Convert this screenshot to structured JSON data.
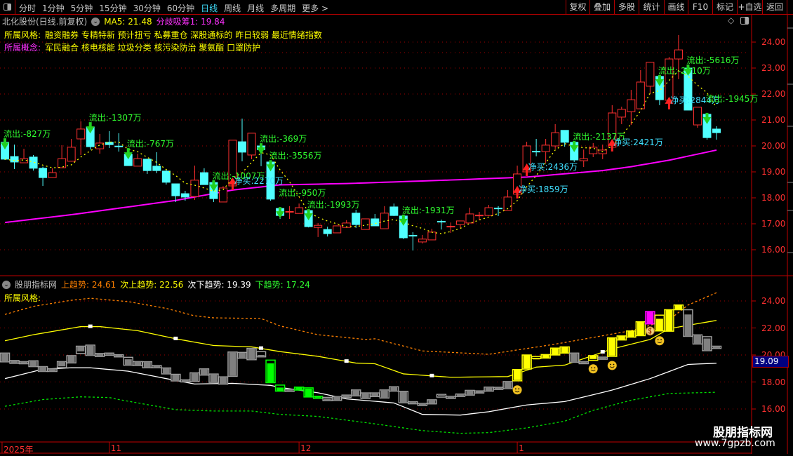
{
  "toolbar": {
    "tabs": [
      "分时",
      "1分钟",
      "5分钟",
      "15分钟",
      "30分钟",
      "60分钟",
      "日线",
      "周线",
      "月线",
      "多周期",
      "更多 >"
    ],
    "active_tab": "日线",
    "buttons": [
      "复权",
      "叠加",
      "多股",
      "统计",
      "画线",
      "F10",
      "标记",
      "+自选",
      "返回"
    ]
  },
  "header": {
    "stock_title": "北化股份(日线.前复权)",
    "ma5_label": "MA5: 21.48",
    "accum_label": "分歧吸筹1: 19.84",
    "style_label": "所属风格:",
    "style_tags": "融资融券 专精特新 预计扭亏 私募重仓 深股通标的 昨日较弱 最近情绪指数",
    "concept_label": "所属概念:",
    "concept_tags": "军民融合 核电核能 垃圾分类 核污染防治 聚氨酯 口罩防护"
  },
  "lower_header": {
    "name": "股朋指标网",
    "up_trend": "上趋势: 24.61",
    "sub_up_trend": "次上趋势: 22.56",
    "sub_down_trend": "次下趋势: 19.39",
    "down_trend": "下趋势: 17.24",
    "style_label": "所属风格:",
    "cursor_value": "19.09"
  },
  "axis": {
    "upper_prices": [
      "24.00",
      "23.00",
      "22.00",
      "21.00",
      "20.00",
      "19.00",
      "18.00",
      "17.00",
      "16.00"
    ],
    "lower_prices": [
      "24.00",
      "22.00",
      "20.00",
      "18.00",
      "16.00"
    ],
    "dates": [
      {
        "label": "2025年",
        "index": -0.3
      },
      {
        "label": "11",
        "index": 11
      },
      {
        "label": "12",
        "index": 31
      },
      {
        "label": "1",
        "index": 54
      }
    ]
  },
  "watermark": {
    "title": "股朋指标网",
    "url": "www.7gpzb.com"
  },
  "colors": {
    "up": "#ff3030",
    "down": "#50ffff",
    "ma5": "#ffff00",
    "accum": "#ff00ff",
    "outflow": "#30ff30",
    "netbuy": "#40e0ff",
    "grid": "#a00000",
    "band_up": "#ff8000",
    "band_sub_up": "#ffff00",
    "band_sub_down": "#ffffff",
    "band_down": "#00e000",
    "lower_gray": "#808080",
    "lower_green": "#00ff00",
    "lower_yellow": "#ffff00",
    "lower_magenta": "#ff00ff"
  },
  "chart_data": {
    "type": "candlestick",
    "candles_ohlc": [
      [
        20.14,
        20.24,
        19.46,
        19.49
      ],
      [
        19.59,
        20.05,
        19.11,
        19.38
      ],
      [
        19.35,
        19.89,
        19.35,
        19.51
      ],
      [
        19.57,
        19.65,
        19.05,
        19.14
      ],
      [
        19.14,
        19.2,
        18.46,
        18.78
      ],
      [
        18.78,
        19.14,
        18.78,
        18.97
      ],
      [
        19.16,
        20.03,
        19.16,
        19.51
      ],
      [
        19.41,
        20.27,
        19.4,
        19.95
      ],
      [
        20.27,
        20.95,
        19.65,
        20.65
      ],
      [
        20.73,
        20.86,
        19.86,
        19.97
      ],
      [
        19.89,
        20.46,
        19.7,
        20.11
      ],
      [
        20.14,
        20.57,
        19.92,
        20.05
      ],
      [
        19.98,
        20.49,
        19.78,
        19.97
      ],
      [
        19.68,
        19.86,
        19.24,
        19.24
      ],
      [
        19.22,
        19.7,
        19.22,
        19.51
      ],
      [
        19.49,
        19.49,
        18.92,
        19.05
      ],
      [
        19.22,
        19.76,
        18.95,
        19.05
      ],
      [
        19.03,
        19.1,
        18.51,
        18.6
      ],
      [
        18.54,
        18.54,
        17.84,
        18.08
      ],
      [
        18.16,
        18.27,
        17.89,
        18.03
      ],
      [
        18.05,
        19.24,
        17.92,
        18.68
      ],
      [
        18.97,
        19.14,
        18.5,
        18.51
      ],
      [
        18.59,
        18.62,
        17.84,
        17.97
      ],
      [
        17.84,
        18.45,
        17.84,
        18.38
      ],
      [
        18.46,
        20.22,
        18.46,
        20.22
      ],
      [
        20.16,
        21.05,
        19.41,
        19.76
      ],
      [
        19.65,
        20.49,
        19.49,
        20.49
      ],
      [
        20.0,
        20.05,
        19.22,
        19.86
      ],
      [
        19.38,
        19.4,
        17.89,
        17.95
      ],
      [
        17.59,
        17.59,
        17.19,
        17.32
      ],
      [
        17.43,
        17.68,
        17.19,
        17.46
      ],
      [
        17.4,
        17.78,
        17.4,
        17.62
      ],
      [
        17.51,
        17.51,
        16.86,
        16.89
      ],
      [
        16.86,
        17.03,
        16.49,
        16.94
      ],
      [
        16.78,
        16.89,
        16.51,
        16.62
      ],
      [
        16.65,
        16.92,
        16.65,
        16.92
      ],
      [
        16.86,
        17.14,
        16.86,
        17.03
      ],
      [
        17.41,
        17.54,
        16.84,
        16.97
      ],
      [
        16.78,
        17.19,
        16.78,
        17.19
      ],
      [
        17.19,
        17.38,
        16.92,
        16.92
      ],
      [
        16.81,
        17.68,
        16.81,
        17.41
      ],
      [
        17.65,
        17.78,
        17.3,
        17.32
      ],
      [
        17.3,
        17.3,
        16.41,
        16.46
      ],
      [
        16.54,
        16.68,
        15.97,
        16.51
      ],
      [
        16.3,
        16.57,
        16.24,
        16.41
      ],
      [
        16.38,
        16.81,
        16.38,
        16.68
      ],
      [
        17.08,
        17.16,
        16.78,
        17.03
      ],
      [
        16.84,
        17.05,
        16.65,
        16.89
      ],
      [
        16.97,
        17.11,
        16.84,
        17.11
      ],
      [
        17.03,
        17.62,
        17.03,
        17.38
      ],
      [
        17.3,
        17.46,
        17.14,
        17.32
      ],
      [
        17.32,
        17.73,
        17.3,
        17.62
      ],
      [
        17.59,
        17.68,
        17.3,
        17.57
      ],
      [
        17.51,
        18.3,
        17.51,
        18.03
      ],
      [
        18.14,
        19.24,
        18.14,
        18.92
      ],
      [
        19.0,
        20.16,
        19.0,
        20.0
      ],
      [
        19.78,
        20.27,
        19.6,
        19.76
      ],
      [
        19.78,
        20.27,
        19.35,
        20.03
      ],
      [
        20.0,
        20.84,
        19.89,
        20.51
      ],
      [
        20.6,
        20.6,
        19.97,
        20.14
      ],
      [
        20.14,
        20.14,
        19.38,
        19.46
      ],
      [
        19.43,
        19.86,
        19.19,
        19.51
      ],
      [
        19.7,
        20.11,
        19.57,
        19.95
      ],
      [
        19.7,
        20.05,
        19.49,
        19.84
      ],
      [
        19.95,
        21.57,
        19.95,
        21.27
      ],
      [
        21.11,
        21.51,
        20.84,
        21.41
      ],
      [
        21.32,
        22.16,
        20.81,
        21.78
      ],
      [
        21.43,
        22.92,
        21.43,
        22.46
      ],
      [
        22.3,
        23.22,
        22.02,
        23.22
      ],
      [
        22.68,
        22.68,
        21.57,
        21.78
      ],
      [
        21.76,
        23.43,
        21.57,
        23.35
      ],
      [
        23.35,
        24.27,
        22.57,
        23.7
      ],
      [
        23.0,
        23.08,
        21.38,
        21.38
      ],
      [
        20.81,
        21.49,
        20.7,
        21.49
      ],
      [
        21.22,
        21.22,
        20.24,
        20.32
      ],
      [
        20.65,
        20.76,
        20.24,
        20.51
      ]
    ],
    "accum_line_points": [
      [
        0,
        17.05
      ],
      [
        7,
        17.35
      ],
      [
        18,
        17.9
      ],
      [
        24,
        18.3
      ],
      [
        29,
        18.5
      ],
      [
        36,
        18.55
      ],
      [
        48,
        18.7
      ],
      [
        55,
        18.8
      ],
      [
        63,
        19.05
      ],
      [
        66,
        19.2
      ],
      [
        70,
        19.45
      ],
      [
        75,
        19.84
      ]
    ],
    "annotations": [
      {
        "index": 0,
        "text": "流出:-827万",
        "kind": "out"
      },
      {
        "index": 9,
        "text": "流出:-1307万",
        "kind": "out"
      },
      {
        "index": 13,
        "text": "流出:-767万",
        "kind": "out"
      },
      {
        "index": 22,
        "text": "流出:-1007万",
        "kind": "out"
      },
      {
        "index": 24,
        "text": "净买:2270万",
        "kind": "buy"
      },
      {
        "index": 27,
        "text": "流出:-369万",
        "kind": "out"
      },
      {
        "index": 28,
        "text": "流出:-3556万",
        "kind": "out"
      },
      {
        "index": 29,
        "text": "流出:-950万",
        "kind": "out"
      },
      {
        "index": 32,
        "text": "流出:-1993万",
        "kind": "out"
      },
      {
        "index": 42,
        "text": "流出:-1931万",
        "kind": "out"
      },
      {
        "index": 54,
        "text": "净买:1859万",
        "kind": "buy"
      },
      {
        "index": 55,
        "text": "净买:2436万",
        "kind": "buy"
      },
      {
        "index": 60,
        "text": "流出:-2137万",
        "kind": "out"
      },
      {
        "index": 64,
        "text": "净买:2421万",
        "kind": "buy"
      },
      {
        "index": 69,
        "text": "流出:-2010万",
        "kind": "out"
      },
      {
        "index": 70,
        "text": "净买:2844万",
        "kind": "buy"
      },
      {
        "index": 72,
        "text": "流出:-5616万",
        "kind": "out"
      },
      {
        "index": 74,
        "text": "流出:-1945万",
        "kind": "out"
      }
    ],
    "lower_bands": {
      "up": [
        [
          0,
          23.0
        ],
        [
          3,
          23.6
        ],
        [
          7,
          24.05
        ],
        [
          9,
          24.2
        ],
        [
          13,
          23.95
        ],
        [
          17,
          23.45
        ],
        [
          20,
          22.9
        ],
        [
          22,
          22.75
        ],
        [
          27,
          22.7
        ],
        [
          29,
          22.15
        ],
        [
          33,
          21.5
        ],
        [
          38,
          21.15
        ],
        [
          39,
          21.2
        ],
        [
          44,
          20.3
        ],
        [
          51,
          20.05
        ],
        [
          58,
          20.8
        ],
        [
          62,
          21.3
        ],
        [
          66,
          21.8
        ],
        [
          70,
          22.6
        ],
        [
          72,
          23.7
        ],
        [
          75,
          24.61
        ]
      ],
      "sub_up": [
        [
          0,
          21.05
        ],
        [
          3,
          21.5
        ],
        [
          8,
          22.1
        ],
        [
          10,
          22.1
        ],
        [
          14,
          21.8
        ],
        [
          18,
          21.2
        ],
        [
          22,
          20.7
        ],
        [
          26,
          20.6
        ],
        [
          29,
          20.25
        ],
        [
          33,
          19.9
        ],
        [
          37,
          19.4
        ],
        [
          39,
          19.35
        ],
        [
          42,
          18.6
        ],
        [
          47,
          18.35
        ],
        [
          53,
          18.4
        ],
        [
          56,
          19.1
        ],
        [
          59,
          19.25
        ],
        [
          64,
          20.45
        ],
        [
          68,
          21.15
        ],
        [
          70,
          21.95
        ],
        [
          75,
          22.56
        ]
      ],
      "sub_down": [
        [
          0,
          18.25
        ],
        [
          4,
          18.95
        ],
        [
          7,
          19.05
        ],
        [
          9,
          19.05
        ],
        [
          13,
          18.8
        ],
        [
          17,
          18.25
        ],
        [
          20,
          17.85
        ],
        [
          24,
          17.9
        ],
        [
          28,
          17.75
        ],
        [
          29,
          17.6
        ],
        [
          33,
          17.2
        ],
        [
          36,
          16.75
        ],
        [
          41,
          16.45
        ],
        [
          44,
          15.6
        ],
        [
          48,
          15.55
        ],
        [
          51,
          15.8
        ],
        [
          55,
          16.3
        ],
        [
          59,
          16.55
        ],
        [
          64,
          17.4
        ],
        [
          68,
          18.25
        ],
        [
          72,
          19.3
        ],
        [
          75,
          19.39
        ]
      ],
      "down": [
        [
          0,
          16.2
        ],
        [
          4,
          16.7
        ],
        [
          8,
          16.9
        ],
        [
          11,
          16.85
        ],
        [
          12,
          16.7
        ],
        [
          16,
          16.2
        ],
        [
          18,
          15.95
        ],
        [
          22,
          15.85
        ],
        [
          26,
          15.85
        ],
        [
          29,
          15.6
        ],
        [
          33,
          15.45
        ],
        [
          39,
          14.9
        ],
        [
          44,
          14.4
        ],
        [
          48,
          14.2
        ],
        [
          51,
          14.25
        ],
        [
          55,
          14.6
        ],
        [
          59,
          15.1
        ],
        [
          62,
          15.9
        ],
        [
          66,
          16.65
        ],
        [
          70,
          17.15
        ],
        [
          75,
          17.24
        ]
      ]
    },
    "lower_colors": {
      "green": [
        28,
        29,
        31,
        32,
        33
      ],
      "yellow": [
        54,
        55,
        56,
        57,
        58,
        59,
        62,
        64,
        65,
        66,
        67,
        69,
        70,
        71
      ],
      "magenta": [
        68
      ]
    },
    "lower_smileys": [
      54,
      62,
      64,
      69
    ],
    "lower_moneybag": [
      68
    ]
  }
}
